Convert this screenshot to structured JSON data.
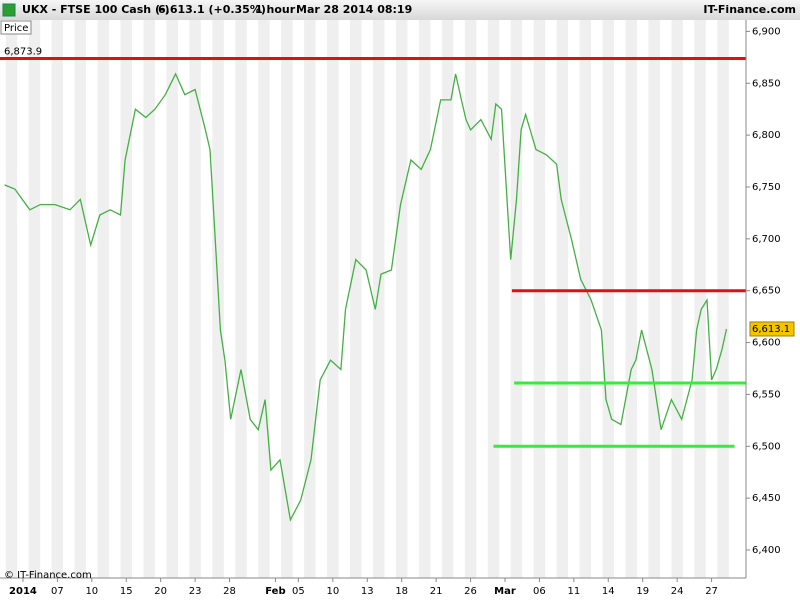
{
  "header": {
    "symbol": "UKX - FTSE 100 Cash (-)",
    "quote": "6,613.1 (+0.35%)",
    "period": "1 hour",
    "timestamp": "Mar 28 2014 08:19",
    "brand": "IT-Finance.com"
  },
  "footer": "© IT-Finance.com",
  "chart_data": {
    "type": "line",
    "xlim": [
      -2,
      63
    ],
    "ylim": [
      6373,
      6911
    ],
    "xticks": [
      {
        "value": 0,
        "label": "2014"
      },
      {
        "value": 3,
        "label": "07"
      },
      {
        "value": 6,
        "label": "10"
      },
      {
        "value": 9,
        "label": "15"
      },
      {
        "value": 12,
        "label": "20"
      },
      {
        "value": 15,
        "label": "23"
      },
      {
        "value": 18,
        "label": "28"
      },
      {
        "value": 22,
        "label": "Feb"
      },
      {
        "value": 24,
        "label": "05"
      },
      {
        "value": 27,
        "label": "10"
      },
      {
        "value": 30,
        "label": "13"
      },
      {
        "value": 33,
        "label": "18"
      },
      {
        "value": 36,
        "label": "21"
      },
      {
        "value": 39,
        "label": "26"
      },
      {
        "value": 42,
        "label": "Mar"
      },
      {
        "value": 45,
        "label": "06"
      },
      {
        "value": 48,
        "label": "11"
      },
      {
        "value": 51,
        "label": "14"
      },
      {
        "value": 54,
        "label": "19"
      },
      {
        "value": 57,
        "label": "24"
      },
      {
        "value": 60,
        "label": "27"
      }
    ],
    "yticks": [
      {
        "value": 6400,
        "label": "6,400"
      },
      {
        "value": 6450,
        "label": "6,450"
      },
      {
        "value": 6500,
        "label": "6,500"
      },
      {
        "value": 6550,
        "label": "6,550"
      },
      {
        "value": 6600,
        "label": "6,600"
      },
      {
        "value": 6650,
        "label": "6,650"
      },
      {
        "value": 6700,
        "label": "6,700"
      },
      {
        "value": 6750,
        "label": "6,750"
      },
      {
        "value": 6800,
        "label": "6,800"
      },
      {
        "value": 6850,
        "label": "6,850"
      },
      {
        "value": 6900,
        "label": "6,900"
      }
    ],
    "series": [
      {
        "name": "Price",
        "color": "#44b044",
        "x": [
          -1.6,
          -0.7,
          0.6,
          1.5,
          2.8,
          4.1,
          5.0,
          5.9,
          6.7,
          7.6,
          8.5,
          8.9,
          9.8,
          10.7,
          11.5,
          12.4,
          13.3,
          14.1,
          15.0,
          15.9,
          16.3,
          16.8,
          17.2,
          17.6,
          18.1,
          19.0,
          19.8,
          20.5,
          21.1,
          21.6,
          22.4,
          23.3,
          24.2,
          25.1,
          25.9,
          26.8,
          27.7,
          28.1,
          29.0,
          29.9,
          30.7,
          31.2,
          32.1,
          32.9,
          33.8,
          34.7,
          35.5,
          36.4,
          37.3,
          37.7,
          38.2,
          38.6,
          39.0,
          39.9,
          40.8,
          41.2,
          41.7,
          42.5,
          43.0,
          43.4,
          43.8,
          44.7,
          45.6,
          46.5,
          46.9,
          47.8,
          48.6,
          49.5,
          50.4,
          50.8,
          51.3,
          52.1,
          53.0,
          53.4,
          53.9,
          54.8,
          55.6,
          56.5,
          57.4,
          58.3,
          58.7,
          59.1,
          59.6,
          60.0,
          60.4,
          60.9,
          61.3
        ],
        "values": [
          6752,
          6748,
          6728,
          6733,
          6733,
          6728,
          6738,
          6694,
          6723,
          6728,
          6723,
          6776,
          6825,
          6817,
          6825,
          6839,
          6859,
          6839,
          6844,
          6805,
          6786,
          6690,
          6612,
          6583,
          6526,
          6574,
          6526,
          6516,
          6545,
          6477,
          6487,
          6429,
          6448,
          6487,
          6564,
          6583,
          6574,
          6632,
          6680,
          6670,
          6632,
          6666,
          6670,
          6733,
          6776,
          6767,
          6786,
          6834,
          6834,
          6859,
          6834,
          6815,
          6805,
          6815,
          6796,
          6830,
          6825,
          6680,
          6738,
          6805,
          6820,
          6786,
          6781,
          6772,
          6738,
          6699,
          6661,
          6641,
          6612,
          6545,
          6526,
          6521,
          6574,
          6583,
          6612,
          6574,
          6516,
          6545,
          6526,
          6564,
          6612,
          6632,
          6641,
          6564,
          6574,
          6593,
          6613.1
        ]
      }
    ],
    "levels": [
      {
        "value": 6873.9,
        "label": "6,873.9",
        "color": "#e01010",
        "from": -2,
        "to": 63
      },
      {
        "value": 6650,
        "color": "#e01010",
        "from": 42.6,
        "to": 63
      },
      {
        "value": 6561,
        "color": "#33ee33",
        "from": 42.8,
        "to": 63
      },
      {
        "value": 6500,
        "color": "#33ee33",
        "from": 41.0,
        "to": 62.0
      }
    ],
    "last_price": {
      "value": 6613.1,
      "label": "6,613.1"
    }
  }
}
